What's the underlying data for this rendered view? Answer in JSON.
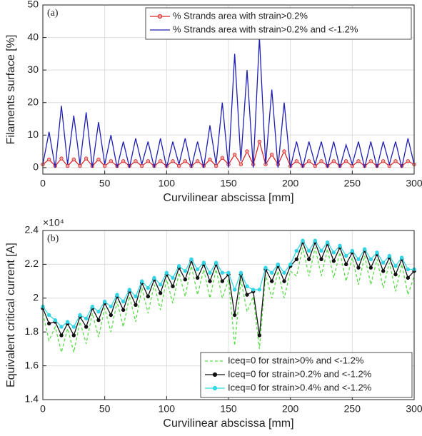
{
  "chart_data": [
    {
      "type": "line",
      "annotation": "(a)",
      "xlabel": "Curvilinear abscissa [mm]",
      "ylabel": "Filaments surface [%]",
      "x": [
        0,
        5,
        10,
        15,
        20,
        25,
        30,
        35,
        40,
        45,
        50,
        55,
        60,
        65,
        70,
        75,
        80,
        85,
        90,
        95,
        100,
        105,
        110,
        115,
        120,
        125,
        130,
        135,
        140,
        145,
        150,
        155,
        160,
        165,
        170,
        175,
        180,
        185,
        190,
        195,
        200,
        205,
        210,
        215,
        220,
        225,
        230,
        235,
        240,
        245,
        250,
        255,
        260,
        265,
        270,
        275,
        280,
        285,
        290,
        295,
        300
      ],
      "series": [
        {
          "name": "% Strands area with strain>0.2%",
          "color": "#d62728",
          "marker": "open",
          "values": [
            1,
            2.5,
            0.5,
            2.8,
            0.5,
            2.5,
            0.5,
            2.8,
            0.5,
            2.5,
            0.5,
            2,
            0.5,
            2,
            0.5,
            2,
            0.5,
            2,
            0.5,
            2,
            0.5,
            2,
            0.5,
            2,
            0.5,
            2,
            0.5,
            2.5,
            0.5,
            3,
            1,
            4,
            1,
            5,
            1,
            8,
            1,
            4,
            1,
            5,
            0.5,
            2,
            0.5,
            2,
            0.5,
            2,
            0.5,
            2,
            0.5,
            2,
            0.5,
            2,
            0.5,
            2,
            0.5,
            2,
            0.5,
            2,
            0.5,
            2,
            1
          ]
        },
        {
          "name": "% Strands area with strain>0.2% and <-1.2%",
          "color": "#1f1fb4",
          "values": [
            1,
            11,
            0,
            19,
            1,
            16,
            1,
            17,
            0,
            14,
            1,
            10,
            0,
            8,
            0,
            9,
            1,
            8,
            0,
            9,
            0,
            8,
            1,
            9,
            0,
            8,
            0,
            13,
            1,
            20,
            0,
            35,
            2,
            30,
            0,
            40,
            1,
            24,
            0,
            20,
            0,
            8,
            0,
            8,
            1,
            8,
            0,
            8,
            0,
            7,
            1,
            8,
            0,
            8,
            0,
            8,
            1,
            8,
            0,
            9,
            1
          ]
        }
      ],
      "xlim": [
        0,
        300
      ],
      "xticks": [
        0,
        50,
        100,
        150,
        200,
        250,
        300
      ],
      "ylim": [
        -2,
        50
      ],
      "yticks": [
        0,
        10,
        20,
        30,
        40,
        50
      ],
      "grid": true,
      "legend": "upper center"
    },
    {
      "type": "line",
      "annotation": "(b)",
      "xlabel": "Curvilinear abscissa [mm]",
      "ylabel": "Equivalent critical current [A]",
      "y_exponent": "×10⁴",
      "x": [
        0,
        5,
        10,
        15,
        20,
        25,
        30,
        35,
        40,
        45,
        50,
        55,
        60,
        65,
        70,
        75,
        80,
        85,
        90,
        95,
        100,
        105,
        110,
        115,
        120,
        125,
        130,
        135,
        140,
        145,
        150,
        155,
        160,
        165,
        170,
        175,
        180,
        185,
        190,
        195,
        200,
        205,
        210,
        215,
        220,
        225,
        230,
        235,
        240,
        245,
        250,
        255,
        260,
        265,
        270,
        275,
        280,
        285,
        290,
        295,
        300
      ],
      "series": [
        {
          "name": "Iceq=0 for strain>0% and <-1.2%",
          "color": "#55dd44",
          "dash": true,
          "values": [
            1.91,
            1.75,
            1.83,
            1.68,
            1.82,
            1.68,
            1.86,
            1.73,
            1.91,
            1.77,
            1.94,
            1.8,
            1.98,
            1.83,
            2.01,
            1.86,
            2.06,
            1.91,
            2.08,
            1.93,
            2.11,
            1.97,
            2.15,
            2.01,
            2.19,
            2.02,
            2.17,
            2.0,
            2.17,
            2.0,
            2.11,
            1.72,
            2.11,
            1.92,
            2.01,
            1.7,
            2.14,
            2.0,
            2.16,
            2.0,
            2.16,
            2.13,
            2.3,
            2.13,
            2.3,
            2.13,
            2.29,
            2.12,
            2.27,
            2.1,
            2.24,
            2.08,
            2.25,
            2.08,
            2.23,
            2.06,
            2.21,
            2.04,
            2.2,
            2.02,
            2.13
          ]
        },
        {
          "name": "Iceq=0 for strain>0.2% and <-1.2%",
          "color": "#111111",
          "marker": "filled",
          "values": [
            1.94,
            1.85,
            1.86,
            1.78,
            1.85,
            1.78,
            1.89,
            1.83,
            1.94,
            1.87,
            1.97,
            1.9,
            2.01,
            1.93,
            2.04,
            1.96,
            2.09,
            2.01,
            2.11,
            2.03,
            2.14,
            2.07,
            2.18,
            2.11,
            2.22,
            2.12,
            2.2,
            2.1,
            2.2,
            2.1,
            2.14,
            1.9,
            2.14,
            2.02,
            2.04,
            1.78,
            2.17,
            2.1,
            2.19,
            2.1,
            2.19,
            2.23,
            2.33,
            2.23,
            2.33,
            2.23,
            2.32,
            2.22,
            2.3,
            2.2,
            2.27,
            2.18,
            2.28,
            2.18,
            2.26,
            2.16,
            2.24,
            2.14,
            2.23,
            2.12,
            2.16
          ]
        },
        {
          "name": "Iceq=0 for strain>0.4% and <-1.2%",
          "color": "#33d6e6",
          "marker": "filled",
          "values": [
            1.95,
            1.9,
            1.87,
            1.83,
            1.86,
            1.83,
            1.9,
            1.88,
            1.95,
            1.92,
            1.98,
            1.95,
            2.02,
            1.98,
            2.05,
            2.01,
            2.1,
            2.06,
            2.12,
            2.08,
            2.15,
            2.12,
            2.19,
            2.16,
            2.23,
            2.17,
            2.21,
            2.15,
            2.21,
            2.15,
            2.15,
            2.05,
            2.15,
            2.07,
            2.05,
            2.05,
            2.18,
            2.15,
            2.2,
            2.15,
            2.2,
            2.28,
            2.34,
            2.28,
            2.34,
            2.28,
            2.33,
            2.27,
            2.31,
            2.25,
            2.28,
            2.23,
            2.29,
            2.23,
            2.27,
            2.21,
            2.25,
            2.19,
            2.24,
            2.17,
            2.17
          ]
        }
      ],
      "xlim": [
        0,
        300
      ],
      "xticks": [
        0,
        50,
        100,
        150,
        200,
        250,
        300
      ],
      "ylim": [
        1.4,
        2.4
      ],
      "yticks": [
        1.4,
        1.6,
        1.8,
        2,
        2.2,
        2.4
      ],
      "grid": true,
      "legend": "lower right"
    }
  ]
}
